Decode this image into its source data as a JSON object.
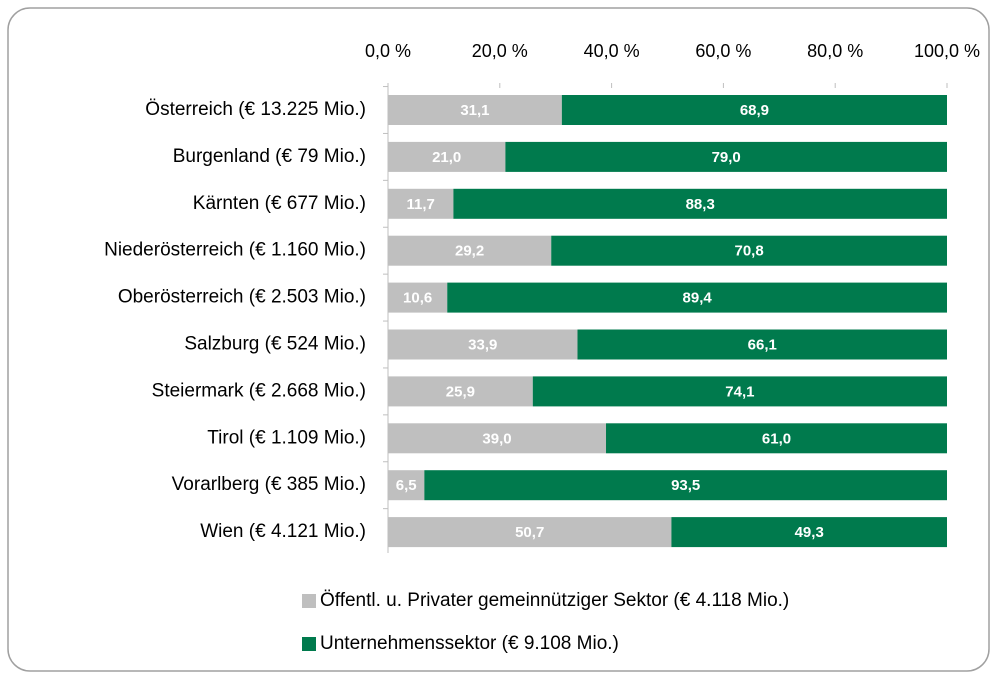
{
  "chart_data": {
    "type": "bar",
    "orientation": "horizontal",
    "stacked": true,
    "categories": [
      "Österreich (€ 13.225 Mio.)",
      "Burgenland (€ 79 Mio.)",
      "Kärnten (€ 677 Mio.)",
      "Niederösterreich (€ 1.160 Mio.)",
      "Oberösterreich (€ 2.503 Mio.)",
      "Salzburg (€ 524 Mio.)",
      "Steiermark (€ 2.668 Mio.)",
      "Tirol (€ 1.109 Mio.)",
      "Vorarlberg (€ 385 Mio.)",
      "Wien (€ 4.121 Mio.)"
    ],
    "series": [
      {
        "name": "Öffentl. u. Privater gemeinnütziger Sektor (€ 4.118 Mio.)",
        "color": "#bfbfbf",
        "values": [
          31.1,
          21.0,
          11.7,
          29.2,
          10.6,
          33.9,
          25.9,
          39.0,
          6.5,
          50.7
        ],
        "value_labels": [
          "31,1",
          "21,0",
          "11,7",
          "29,2",
          "10,6",
          "33,9",
          "25,9",
          "39,0",
          "6,5",
          "50,7"
        ]
      },
      {
        "name": "Unternehmenssektor (€ 9.108 Mio.)",
        "color": "#007a4d",
        "values": [
          68.9,
          79.0,
          88.3,
          70.8,
          89.4,
          66.1,
          74.1,
          61.0,
          93.5,
          49.3
        ],
        "value_labels": [
          "68,9",
          "79,0",
          "88,3",
          "70,8",
          "89,4",
          "66,1",
          "74,1",
          "61,0",
          "93,5",
          "49,3"
        ]
      }
    ],
    "xlim": [
      0,
      100
    ],
    "xticks": [
      {
        "value": 0,
        "label": "0,0 %"
      },
      {
        "value": 20,
        "label": "20,0 %"
      },
      {
        "value": 40,
        "label": "40,0 %"
      },
      {
        "value": 60,
        "label": "60,0 %"
      },
      {
        "value": 80,
        "label": "80,0 %"
      },
      {
        "value": 100,
        "label": "100,0 %"
      }
    ],
    "legend": "bottom"
  }
}
